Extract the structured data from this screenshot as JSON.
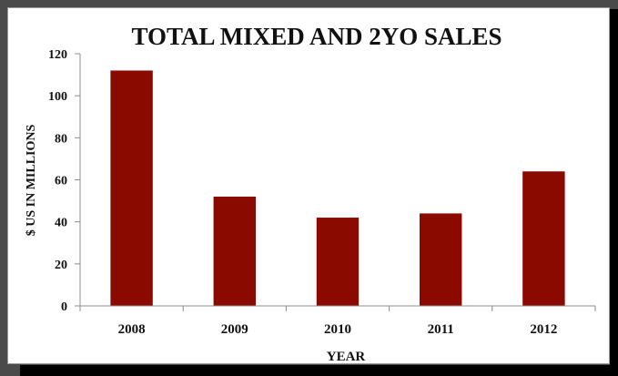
{
  "chart_data": {
    "type": "bar",
    "title": "TOTAL MIXED AND 2YO SALES",
    "xlabel": "YEAR",
    "ylabel": "$ US IN MILLIONS",
    "categories": [
      "2008",
      "2009",
      "2010",
      "2011",
      "2012"
    ],
    "values": [
      112,
      52,
      42,
      44,
      64
    ],
    "ylim": [
      0,
      120
    ],
    "yticks": [
      "0",
      "20",
      "40",
      "60",
      "80",
      "100",
      "120"
    ],
    "grid": false,
    "legend": "none",
    "bar_color": "#8b0a00"
  }
}
